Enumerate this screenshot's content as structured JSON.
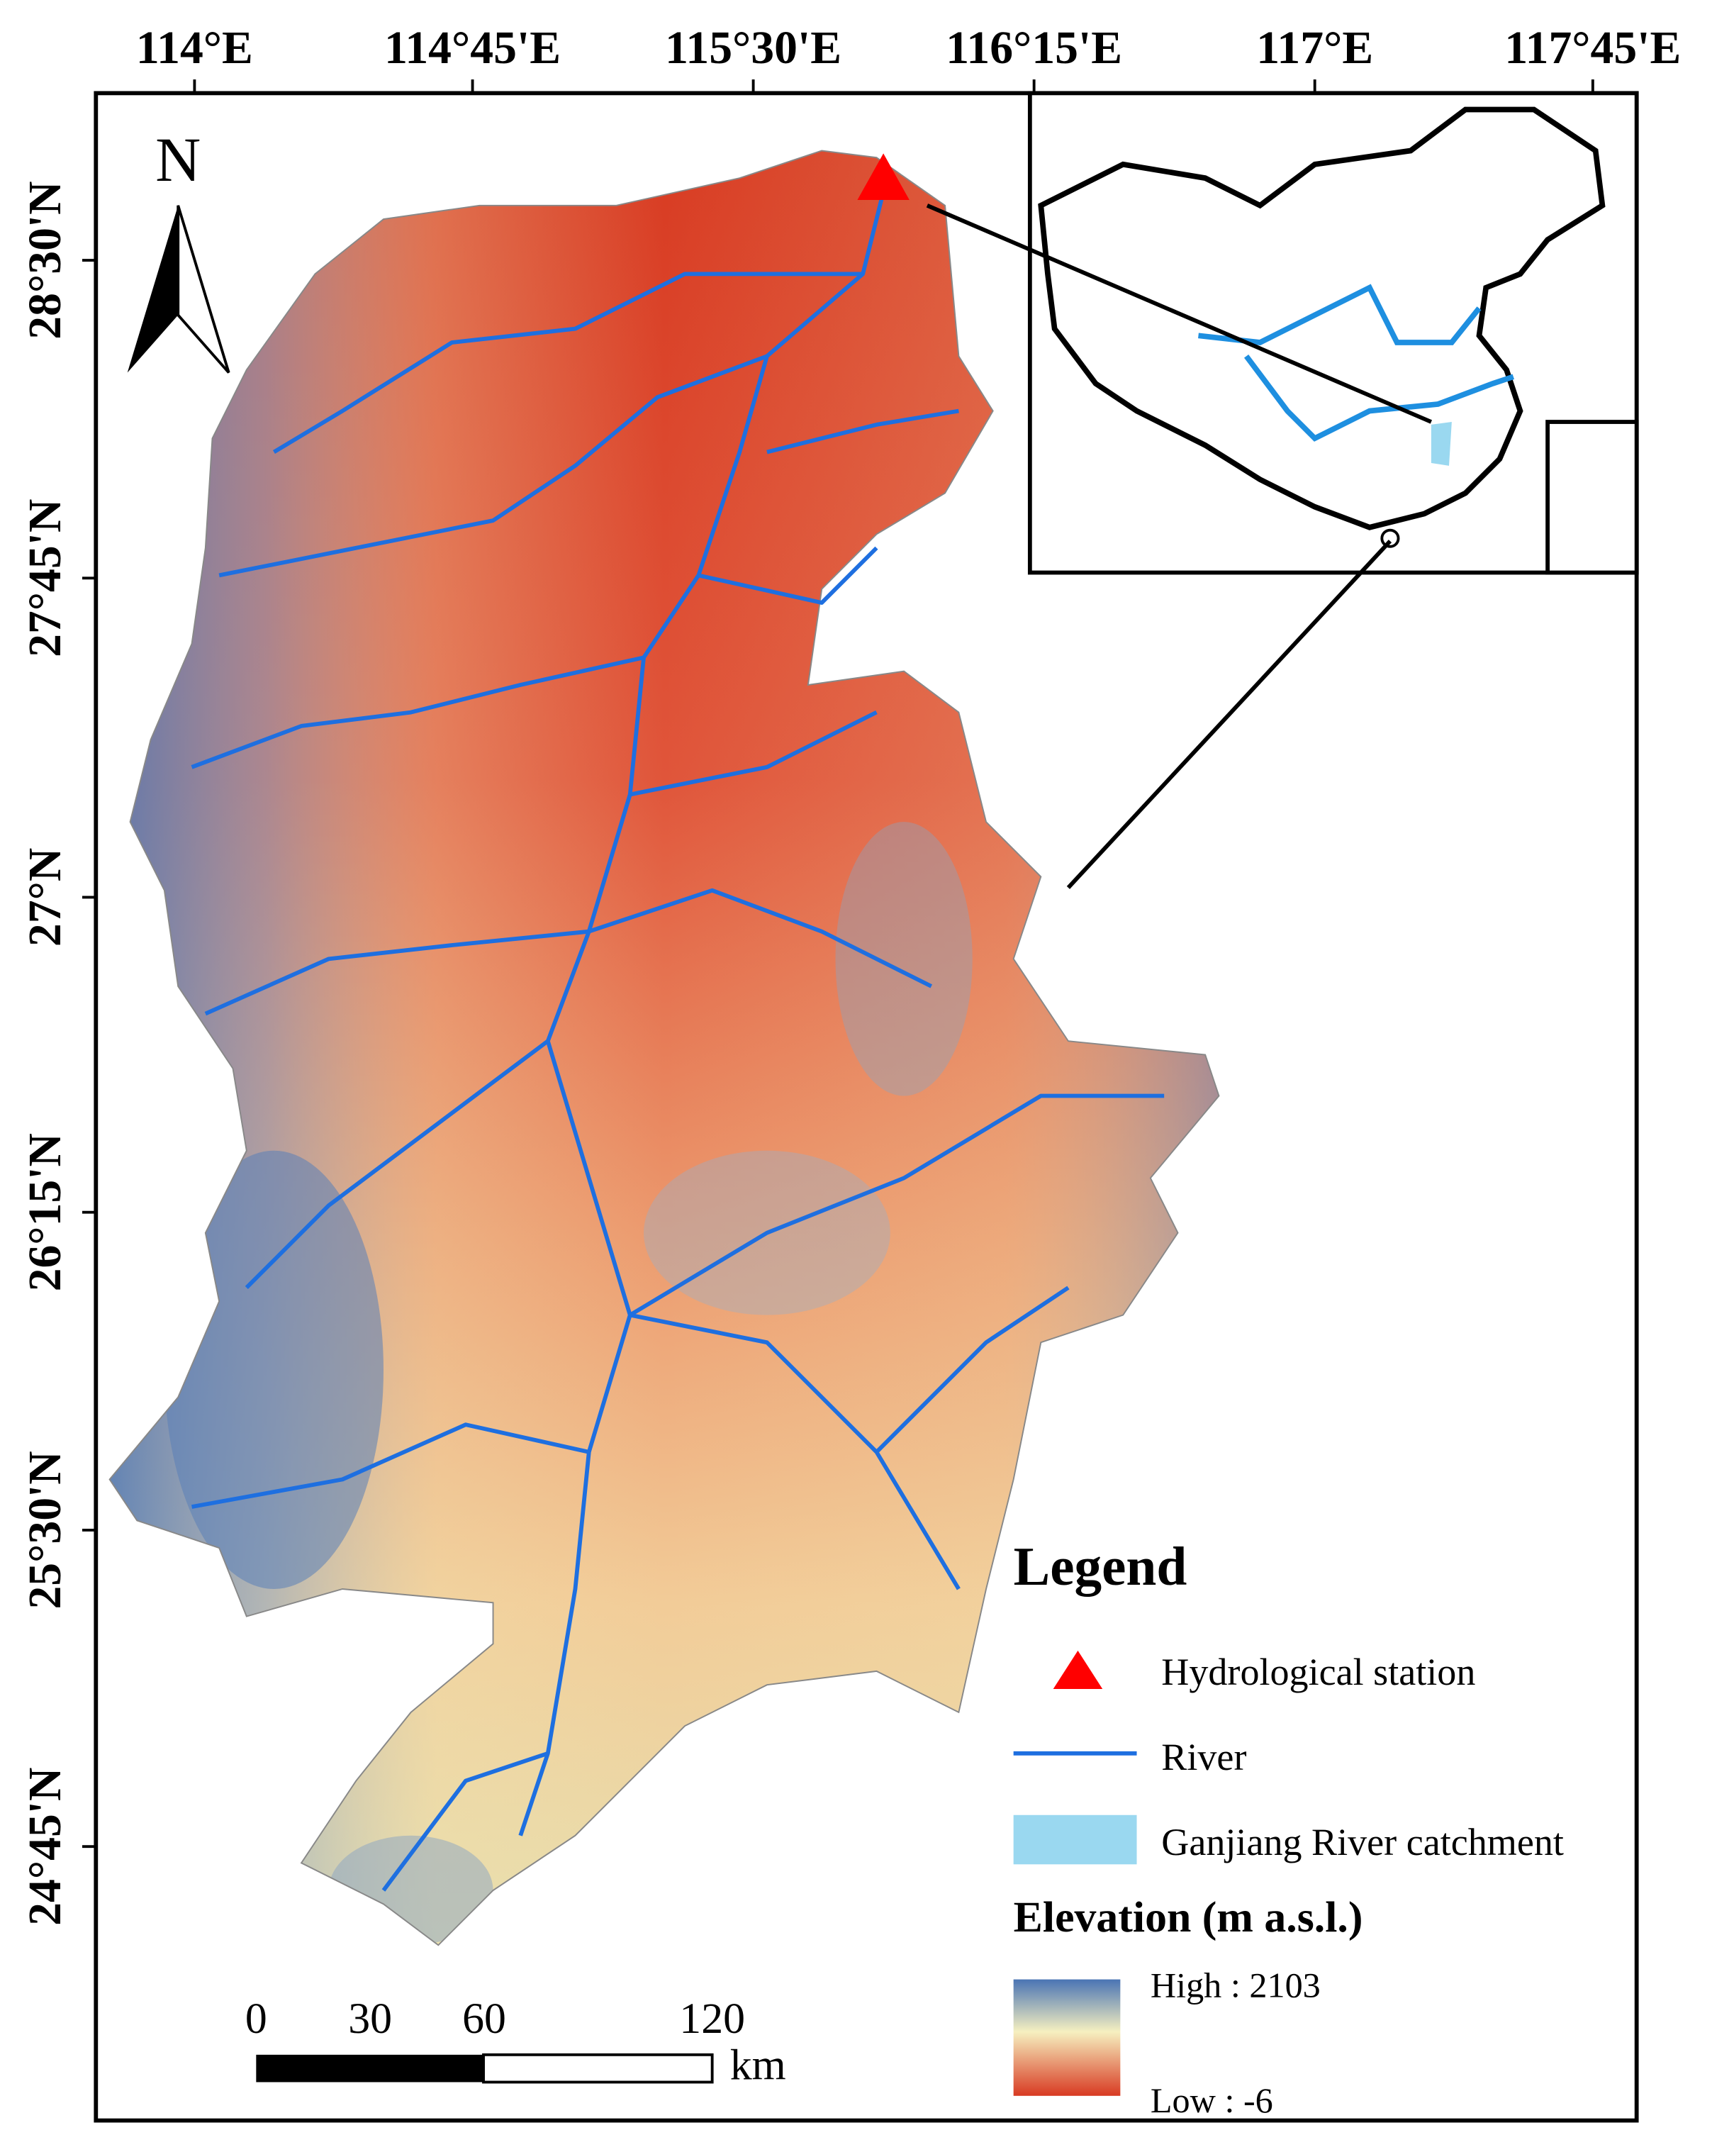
{
  "north_label": "N",
  "longitude_labels": [
    "114°E",
    "114°45'E",
    "115°30'E",
    "116°15'E",
    "117°E",
    "117°45'E"
  ],
  "latitude_labels": [
    "28°30'N",
    "27°45'N",
    "27°N",
    "26°15'N",
    "25°30'N",
    "24°45'N"
  ],
  "legend": {
    "title": "Legend",
    "items": [
      "Hydrological station",
      "River",
      "Ganjiang River catchment"
    ],
    "elevation_title": "Elevation (m a.s.l.)",
    "high": "High : 2103",
    "low": "Low : -6"
  },
  "scale_bar": {
    "ticks": [
      0,
      30,
      60,
      120
    ],
    "unit": "km"
  }
}
